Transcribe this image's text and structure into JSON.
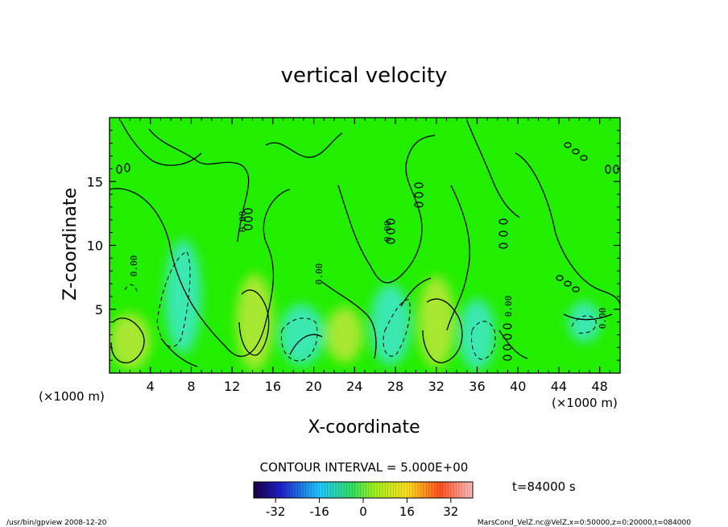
{
  "chart_data": {
    "type": "heatmap",
    "title": "vertical velocity",
    "xlabel": "X-coordinate",
    "ylabel": "Z-coordinate",
    "x_unit_left": "(×1000 m)",
    "x_unit_right": "(×1000 m)",
    "xlim": [
      0,
      50
    ],
    "ylim": [
      0,
      20
    ],
    "xticks": [
      4,
      8,
      12,
      16,
      20,
      24,
      28,
      32,
      36,
      40,
      44,
      48
    ],
    "yticks": [
      5,
      10,
      15
    ],
    "contour_interval": "CONTOUR INTERVAL = 5.000E+00",
    "colorbar": {
      "min": -40,
      "max": 40,
      "ticks": [
        -32,
        -16,
        0,
        16,
        32
      ]
    },
    "time_label": "t=84000 s",
    "contour_labels": [
      "0.00",
      "0.00",
      "0.00",
      "0.00",
      "0.00",
      "0.00"
    ],
    "footer_left": "/usr/bin/gpview   2008-12-20",
    "footer_right": "MarsCond_VelZ.nc@VelZ,x=0:50000,z=0:20000,t=084000",
    "features": [
      {
        "kind": "positive",
        "x": 2.0,
        "z": 2.5,
        "rx": 2.0,
        "rz": 2.2
      },
      {
        "kind": "negative",
        "x": 7.2,
        "z": 6.0,
        "rx": 1.8,
        "rz": 4.5
      },
      {
        "kind": "positive",
        "x": 14.2,
        "z": 4.0,
        "rx": 1.8,
        "rz": 3.8
      },
      {
        "kind": "negative",
        "x": 18.8,
        "z": 3.0,
        "rx": 2.2,
        "rz": 2.4
      },
      {
        "kind": "positive",
        "x": 23.0,
        "z": 3.0,
        "rx": 1.8,
        "rz": 2.2
      },
      {
        "kind": "negative",
        "x": 27.5,
        "z": 3.8,
        "rx": 2.0,
        "rz": 3.2
      },
      {
        "kind": "positive",
        "x": 32.0,
        "z": 4.0,
        "rx": 1.8,
        "rz": 3.6
      },
      {
        "kind": "negative",
        "x": 36.0,
        "z": 3.0,
        "rx": 1.8,
        "rz": 2.8
      },
      {
        "kind": "negative",
        "x": 46.5,
        "z": 4.0,
        "rx": 1.6,
        "rz": 1.6
      }
    ]
  }
}
